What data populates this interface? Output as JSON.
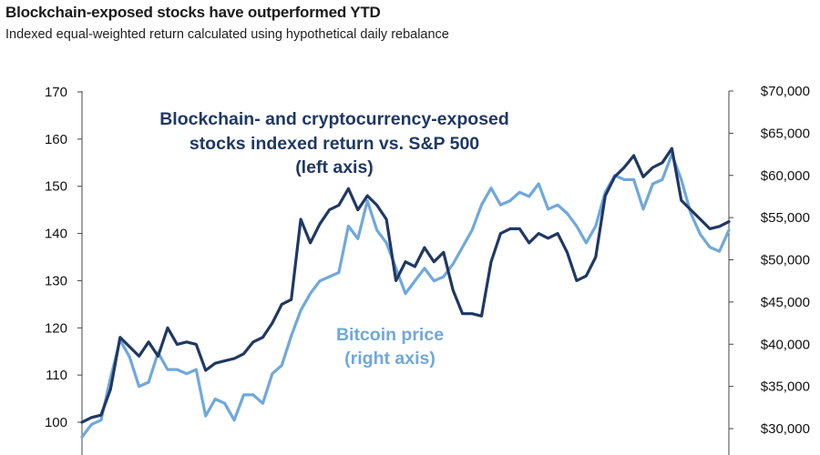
{
  "title": "Blockchain-exposed stocks have outperformed YTD",
  "subtitle": "Indexed equal-weighted return calculated using hypothetical daily rebalance",
  "colors": {
    "stocks": "#1f3864",
    "bitcoin": "#6fa8dc"
  },
  "chart_data": {
    "type": "line",
    "title": "Blockchain-exposed stocks have outperformed YTD",
    "subtitle": "Indexed equal-weighted return calculated using hypothetical daily rebalance",
    "grid": false,
    "legend": "inline annotations",
    "y_left": {
      "range": [
        100,
        170
      ],
      "ticks": [
        100,
        110,
        120,
        130,
        140,
        150,
        160,
        170
      ],
      "tick_labels": [
        "100",
        "110",
        "120",
        "130",
        "140",
        "150",
        "160",
        "170"
      ]
    },
    "y_right": {
      "range": [
        30000,
        70000
      ],
      "ticks": [
        30000,
        35000,
        40000,
        45000,
        50000,
        55000,
        60000,
        65000,
        70000
      ],
      "tick_labels": [
        "$30,000",
        "$35,000",
        "$40,000",
        "$45,000",
        "$50,000",
        "$55,000",
        "$60,000",
        "$65,000",
        "$70,000"
      ]
    },
    "x_range": [
      0,
      68
    ],
    "annotations": {
      "stocks_lines": [
        "Blockchain- and cryptocurrency-exposed",
        "stocks indexed return vs. S&P 500",
        "(left axis)"
      ],
      "bitcoin_lines": [
        "Bitcoin price",
        "(right axis)"
      ]
    },
    "series": [
      {
        "axis": "left",
        "color": "#1f3864",
        "x": [
          0,
          1,
          2,
          3,
          4,
          5,
          6,
          7,
          8,
          9,
          10,
          11,
          12,
          13,
          14,
          15,
          16,
          17,
          18,
          19,
          20,
          21,
          22,
          23,
          24,
          25,
          26,
          27,
          28,
          29,
          30,
          31,
          32,
          33,
          34,
          35,
          36,
          37,
          38,
          39,
          40,
          41,
          42,
          43,
          44,
          45,
          46,
          47,
          48,
          49,
          50,
          51,
          52,
          53,
          54,
          55,
          56,
          57,
          58,
          59,
          60,
          61,
          62,
          63,
          64,
          65,
          66,
          67,
          68
        ],
        "y": [
          100,
          101,
          101.5,
          107,
          118,
          116,
          114,
          117,
          114,
          120,
          116.5,
          117,
          116.5,
          111,
          112.5,
          113,
          113.5,
          114.5,
          117,
          118,
          121,
          125,
          126,
          143,
          138,
          142,
          145,
          146,
          149.5,
          145,
          148,
          146,
          143,
          130,
          134,
          133,
          137,
          134,
          136,
          128,
          123,
          123,
          122.5,
          134,
          140,
          141,
          141,
          138,
          140,
          139,
          140,
          136,
          130,
          131,
          135,
          148,
          152,
          154,
          156.5,
          152,
          154,
          155,
          158,
          147,
          145,
          143,
          141,
          141.5,
          142.5
        ]
      },
      {
        "axis": "right",
        "color": "#6fa8dc",
        "x": [
          0,
          1,
          2,
          3,
          4,
          5,
          6,
          7,
          8,
          9,
          10,
          11,
          12,
          13,
          14,
          15,
          16,
          17,
          18,
          19,
          20,
          21,
          22,
          23,
          24,
          25,
          26,
          27,
          28,
          29,
          30,
          31,
          32,
          33,
          34,
          35,
          36,
          37,
          38,
          39,
          40,
          41,
          42,
          43,
          44,
          45,
          46,
          47,
          48,
          49,
          50,
          51,
          52,
          53,
          54,
          55,
          56,
          57,
          58,
          59,
          60,
          61,
          62,
          63,
          64,
          65,
          66,
          67,
          68
        ],
        "y": [
          29000,
          30500,
          31000,
          36000,
          40500,
          38500,
          35000,
          35500,
          39000,
          37000,
          37000,
          36500,
          37000,
          31500,
          33500,
          33000,
          31000,
          34000,
          34000,
          33000,
          36500,
          37500,
          41000,
          44000,
          46000,
          47500,
          48000,
          48500,
          54000,
          52500,
          57000,
          53500,
          52000,
          49000,
          46000,
          47500,
          49000,
          47500,
          48000,
          49500,
          51500,
          53500,
          56500,
          58500,
          56500,
          57000,
          58000,
          57500,
          59000,
          56000,
          56500,
          55500,
          54000,
          52000,
          54000,
          58000,
          60000,
          59500,
          59500,
          56000,
          59000,
          59500,
          62500,
          59500,
          55500,
          53000,
          51500,
          51000,
          53500
        ]
      }
    ]
  }
}
